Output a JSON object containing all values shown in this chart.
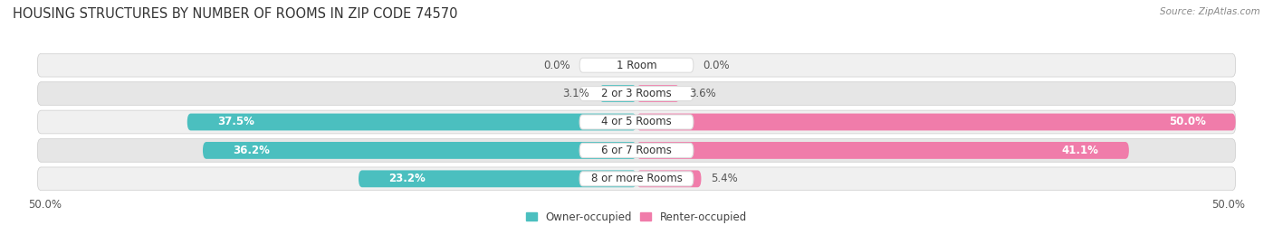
{
  "title": "HOUSING STRUCTURES BY NUMBER OF ROOMS IN ZIP CODE 74570",
  "source": "Source: ZipAtlas.com",
  "categories": [
    "1 Room",
    "2 or 3 Rooms",
    "4 or 5 Rooms",
    "6 or 7 Rooms",
    "8 or more Rooms"
  ],
  "owner_values": [
    0.0,
    3.1,
    37.5,
    36.2,
    23.2
  ],
  "renter_values": [
    0.0,
    3.6,
    50.0,
    41.1,
    5.4
  ],
  "owner_color": "#4BBFBF",
  "renter_color": "#F07CAA",
  "renter_color_light": "#F5AECB",
  "owner_color_light": "#8ECECE",
  "row_bg_color_odd": "#F0F0F0",
  "row_bg_color_even": "#E6E6E6",
  "max_val": 50.0,
  "x_left_label": "50.0%",
  "x_right_label": "50.0%",
  "legend_owner": "Owner-occupied",
  "legend_renter": "Renter-occupied",
  "title_fontsize": 10.5,
  "source_fontsize": 7.5,
  "bar_label_fontsize": 8.5,
  "category_fontsize": 8.5,
  "axis_label_fontsize": 8.5
}
